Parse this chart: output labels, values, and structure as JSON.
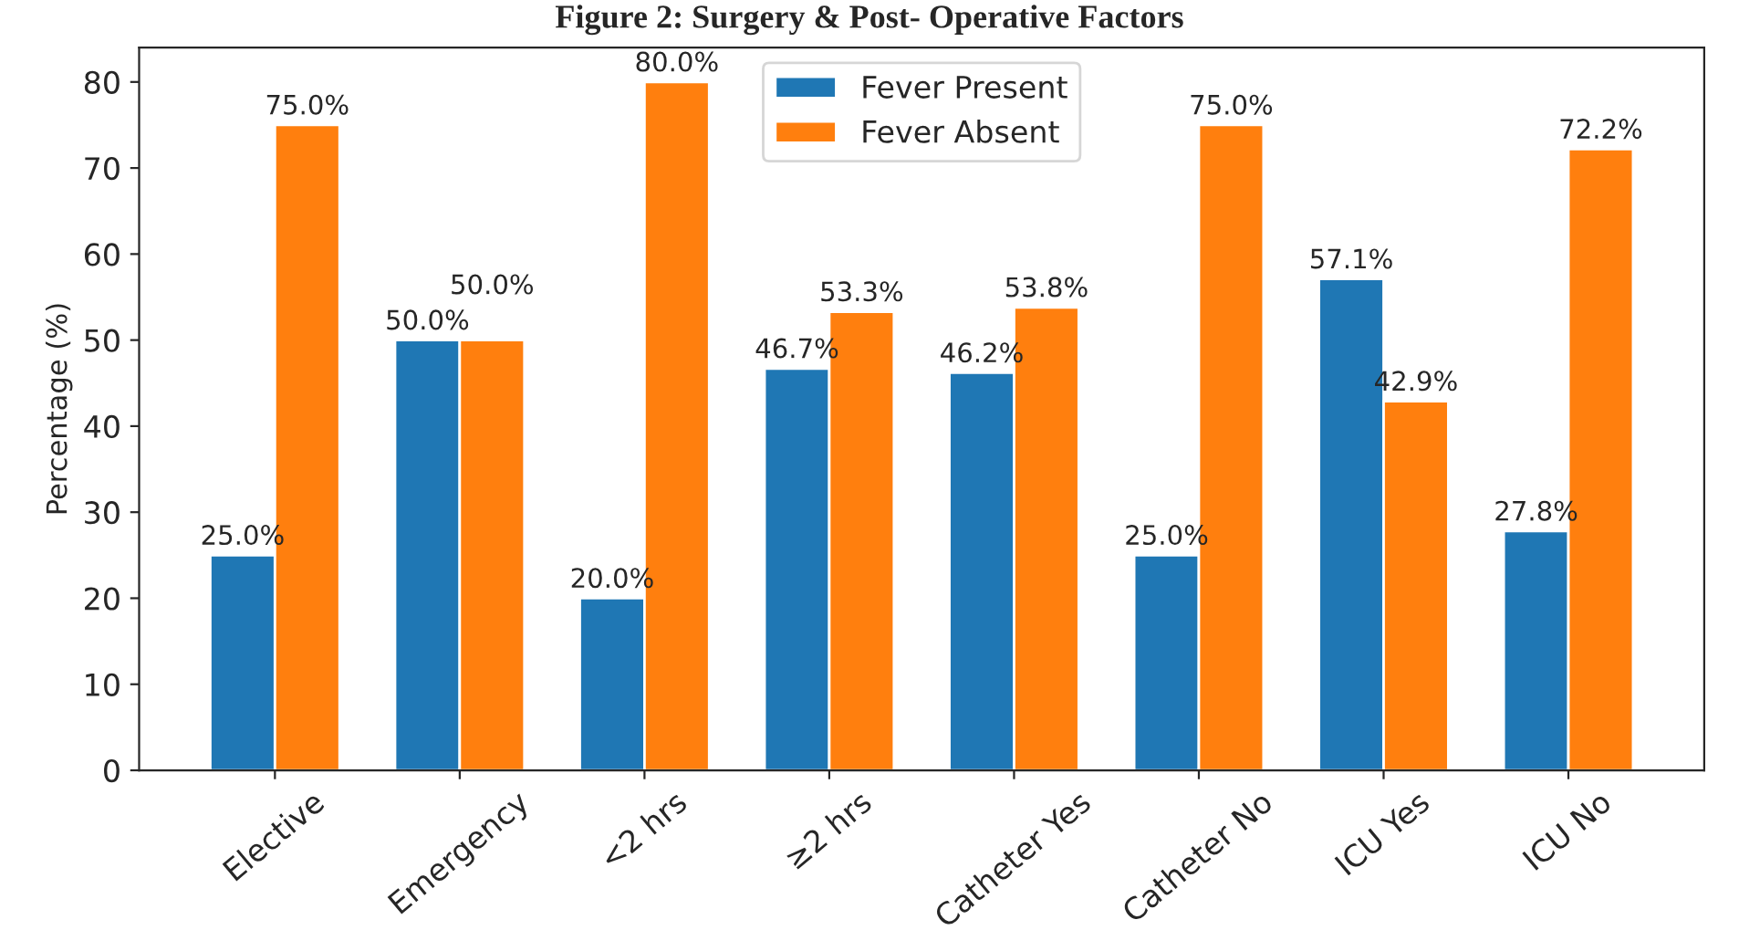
{
  "chart_data": {
    "type": "bar",
    "title": "Figure 2: Surgery & Post- Operative Factors",
    "ylabel": "Percentage (%)",
    "categories": [
      "Elective",
      "Emergency",
      "<2 hrs",
      "≥2 hrs",
      "Catheter Yes",
      "Catheter No",
      "ICU Yes",
      "ICU No"
    ],
    "series": [
      {
        "name": "Fever Present",
        "color": "#1f77b4",
        "values": [
          25.0,
          50.0,
          20.0,
          46.7,
          46.2,
          25.0,
          57.1,
          27.8
        ],
        "value_labels": [
          "25.0%",
          "50.0%",
          "20.0%",
          "46.7%",
          "46.2%",
          "25.0%",
          "57.1%",
          "27.8%"
        ]
      },
      {
        "name": "Fever Absent",
        "color": "#ff7f0e",
        "values": [
          75.0,
          50.0,
          80.0,
          53.3,
          53.8,
          75.0,
          42.9,
          72.2
        ],
        "value_labels": [
          "75.0%",
          "50.0%",
          "80.0%",
          "53.3%",
          "53.8%",
          "75.0%",
          "42.9%",
          "72.2%"
        ]
      }
    ],
    "ylim": [
      0,
      84
    ],
    "yticks": [
      0,
      10,
      20,
      30,
      40,
      50,
      60,
      70,
      80
    ],
    "legend": "top",
    "grid": false
  }
}
